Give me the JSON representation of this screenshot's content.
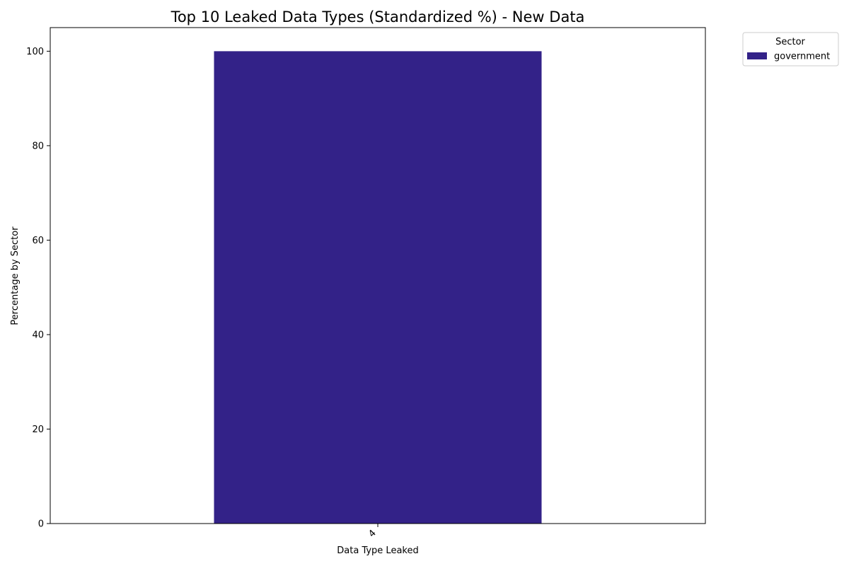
{
  "chart_data": {
    "type": "bar",
    "title": "Top 10 Leaked Data Types (Standardized %) - New Data",
    "xlabel": "Data Type Leaked",
    "ylabel": "Percentage by Sector",
    "categories": [
      "4"
    ],
    "series": [
      {
        "name": "government",
        "values": [
          100
        ],
        "color": "#332288"
      }
    ],
    "ylim": [
      0,
      105
    ],
    "yticks": [
      0,
      20,
      40,
      60,
      80,
      100
    ],
    "grid": false,
    "legend": {
      "title": "Sector",
      "placement": "outside-top-right"
    }
  }
}
